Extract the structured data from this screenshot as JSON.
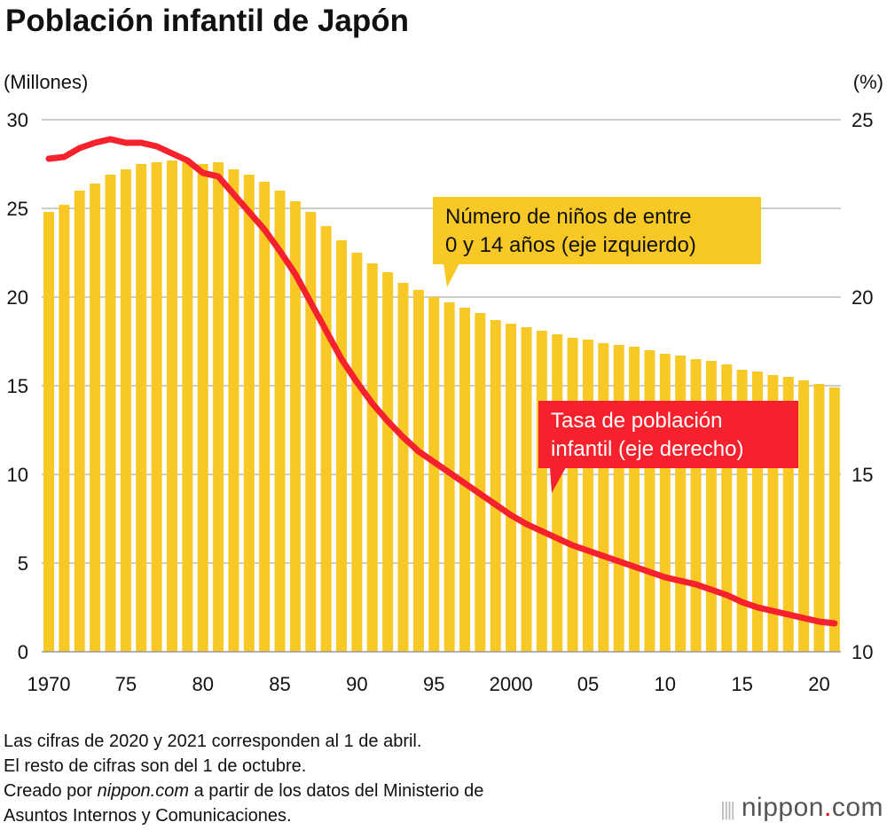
{
  "title": "Población infantil de Japón",
  "left_unit": "(Millones)",
  "right_unit": "(%)",
  "chart_data": {
    "type": "bar+line",
    "title": "Población infantil de Japón",
    "ylabel_left": "(Millones)",
    "ylabel_right": "(%)",
    "ylim_left": [
      0,
      30
    ],
    "ylim_right": [
      10,
      25
    ],
    "yticks_left": [
      "0",
      "5",
      "10",
      "15",
      "20",
      "25",
      "30"
    ],
    "yticks_right": [
      "10",
      "15",
      "20",
      "25"
    ],
    "xtick_labels": [
      {
        "year": 1970,
        "label": "1970"
      },
      {
        "year": 1975,
        "label": "75"
      },
      {
        "year": 1980,
        "label": "80"
      },
      {
        "year": 1985,
        "label": "85"
      },
      {
        "year": 1990,
        "label": "90"
      },
      {
        "year": 1995,
        "label": "95"
      },
      {
        "year": 2000,
        "label": "2000"
      },
      {
        "year": 2005,
        "label": "05"
      },
      {
        "year": 2010,
        "label": "10"
      },
      {
        "year": 2015,
        "label": "15"
      },
      {
        "year": 2020,
        "label": "20"
      }
    ],
    "x": [
      1970,
      1971,
      1972,
      1973,
      1974,
      1975,
      1976,
      1977,
      1978,
      1979,
      1980,
      1981,
      1982,
      1983,
      1984,
      1985,
      1986,
      1987,
      1988,
      1989,
      1990,
      1991,
      1992,
      1993,
      1994,
      1995,
      1996,
      1997,
      1998,
      1999,
      2000,
      2001,
      2002,
      2003,
      2004,
      2005,
      2006,
      2007,
      2008,
      2009,
      2010,
      2011,
      2012,
      2013,
      2014,
      2015,
      2016,
      2017,
      2018,
      2019,
      2020,
      2021
    ],
    "series": [
      {
        "name": "Número de niños de entre 0 y 14 años (eje izquierdo)",
        "type": "bar",
        "axis": "left",
        "color": "#f8c926",
        "values": [
          24.8,
          25.2,
          26.0,
          26.4,
          26.9,
          27.2,
          27.5,
          27.6,
          27.7,
          27.6,
          27.5,
          27.6,
          27.2,
          26.9,
          26.5,
          26.0,
          25.4,
          24.8,
          24.0,
          23.2,
          22.5,
          21.9,
          21.4,
          20.8,
          20.4,
          20.0,
          19.7,
          19.4,
          19.1,
          18.7,
          18.5,
          18.3,
          18.1,
          17.9,
          17.7,
          17.6,
          17.4,
          17.3,
          17.2,
          17.0,
          16.8,
          16.7,
          16.5,
          16.4,
          16.2,
          15.9,
          15.8,
          15.6,
          15.5,
          15.3,
          15.1,
          14.9
        ]
      },
      {
        "name": "Tasa de población infantil (eje derecho)",
        "type": "line",
        "axis": "right",
        "color": "#f5212d",
        "values": [
          23.9,
          23.95,
          24.2,
          24.35,
          24.45,
          24.35,
          24.35,
          24.25,
          24.05,
          23.85,
          23.5,
          23.4,
          22.9,
          22.4,
          21.9,
          21.3,
          20.65,
          19.85,
          19.05,
          18.25,
          17.6,
          17.0,
          16.5,
          16.05,
          15.65,
          15.35,
          15.05,
          14.75,
          14.45,
          14.15,
          13.85,
          13.6,
          13.4,
          13.2,
          13.0,
          12.85,
          12.7,
          12.55,
          12.4,
          12.25,
          12.1,
          12.0,
          11.9,
          11.75,
          11.6,
          11.4,
          11.25,
          11.15,
          11.05,
          10.95,
          10.85,
          10.8
        ]
      }
    ],
    "annotations": [
      "Número de niños de entre",
      "0 y 14 años (eje izquierdo)",
      "Tasa de población",
      "infantil (eje derecho)"
    ]
  },
  "notes": [
    "Las cifras de 2020 y 2021 corresponden al 1 de abril.",
    "El resto de cifras son del 1 de octubre.",
    "Creado por ",
    "nippon.com",
    " a partir de los datos del Ministerio de",
    "Asuntos Internos y Comunicaciones."
  ],
  "logo": {
    "text": "nippon",
    "dot": ".",
    "suffix": "com"
  }
}
